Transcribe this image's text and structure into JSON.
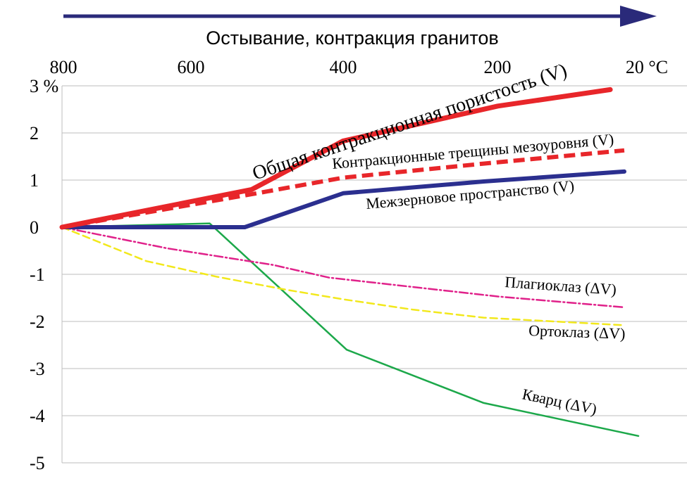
{
  "chart_data": {
    "type": "line",
    "title": "Остывание, контракция гранитов",
    "x_tick_labels": [
      "800",
      "600",
      "400",
      "200",
      "20 °C"
    ],
    "x_ticks": [
      800,
      600,
      400,
      200,
      20
    ],
    "y_tick_labels": [
      "3 %",
      "2",
      "1",
      "0",
      "-1",
      "-2",
      "-3",
      "-4",
      "-5"
    ],
    "y_ticks": [
      3,
      2,
      1,
      0,
      -1,
      -2,
      -3,
      -4,
      -5
    ],
    "xlim": [
      800,
      20
    ],
    "ylim": [
      -5,
      3
    ],
    "grid": true,
    "colors": {
      "arrow": "#2a2a7a",
      "total": "#e8262a",
      "mesolevel": "#e8262a",
      "intergranular": "#2b2f8f",
      "plagioclase": "#e0218a",
      "orthoclase": "#f2e81c",
      "quartz": "#1ca84a"
    },
    "series": [
      {
        "key": "total",
        "name": "Общая контракционная пористость (V)",
        "x": [
          800,
          530,
          400,
          180,
          20
        ],
        "y": [
          0,
          0.8,
          1.83,
          2.57,
          2.92
        ]
      },
      {
        "key": "mesolevel",
        "name": "Контракционные трещины мезоуровня (V)",
        "x": [
          800,
          530,
          400,
          200,
          0
        ],
        "y": [
          0,
          0.7,
          1.05,
          1.35,
          1.63
        ]
      },
      {
        "key": "intergranular",
        "name": "Межзерновое пространство (V)",
        "x": [
          800,
          540,
          400,
          200,
          0
        ],
        "y": [
          0,
          0,
          0.72,
          0.97,
          1.18
        ]
      },
      {
        "key": "plagioclase",
        "name": "Плагиоклаз (ΔV)",
        "x": [
          800,
          650,
          500,
          420,
          300,
          180,
          0
        ],
        "y": [
          0,
          -0.45,
          -0.8,
          -1.07,
          -1.27,
          -1.47,
          -1.7
        ]
      },
      {
        "key": "orthoclase",
        "name": "Ортоклаз (ΔV)",
        "x": [
          800,
          680,
          580,
          480,
          400,
          300,
          200,
          0
        ],
        "y": [
          0,
          -0.72,
          -1.05,
          -1.33,
          -1.53,
          -1.75,
          -1.92,
          -2.08
        ]
      },
      {
        "key": "quartz",
        "name": "Кварц (ΔV)",
        "x": [
          800,
          590,
          395,
          200,
          -20
        ],
        "y": [
          0,
          0.08,
          -2.6,
          -3.73,
          -4.43
        ]
      }
    ]
  }
}
